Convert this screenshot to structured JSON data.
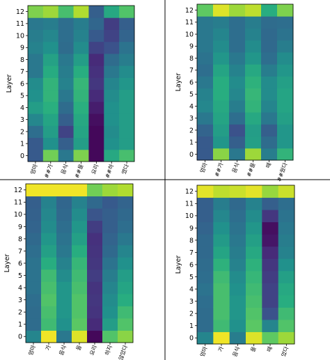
{
  "colormap": {
    "name": "viridis",
    "stops": [
      "#440154",
      "#472d7b",
      "#3b528b",
      "#2c728e",
      "#21918c",
      "#28ae80",
      "#5ec962",
      "#addc30",
      "#fde725"
    ]
  },
  "colors": {
    "grid_line": "#000000",
    "background": "#ffffff"
  },
  "chart_data": [
    {
      "type": "heatmap",
      "ylabel": "Layer",
      "y_categories": [
        "0",
        "1",
        "2",
        "3",
        "4",
        "5",
        "6",
        "7",
        "8",
        "9",
        "10",
        "11",
        "12"
      ],
      "x_categories": [
        "엄마",
        "##가",
        "음식",
        "##을",
        "요리",
        "##하",
        "였다"
      ],
      "values": [
        [
          0.28,
          0.28,
          0.36,
          0.46,
          0.55,
          0.5,
          0.48,
          0.4,
          0.4,
          0.44,
          0.42,
          0.4,
          0.8
        ],
        [
          0.78,
          0.5,
          0.55,
          0.58,
          0.63,
          0.65,
          0.65,
          0.61,
          0.57,
          0.5,
          0.46,
          0.42,
          0.85
        ],
        [
          0.4,
          0.3,
          0.2,
          0.3,
          0.35,
          0.4,
          0.44,
          0.42,
          0.4,
          0.35,
          0.36,
          0.36,
          0.7
        ],
        [
          0.8,
          0.55,
          0.58,
          0.6,
          0.63,
          0.65,
          0.66,
          0.62,
          0.55,
          0.48,
          0.44,
          0.42,
          0.88
        ],
        [
          0.02,
          0.02,
          0.02,
          0.04,
          0.08,
          0.12,
          0.16,
          0.14,
          0.12,
          0.2,
          0.28,
          0.33,
          0.3
        ],
        [
          0.6,
          0.5,
          0.48,
          0.5,
          0.5,
          0.48,
          0.45,
          0.4,
          0.35,
          0.25,
          0.2,
          0.18,
          0.6
        ],
        [
          0.7,
          0.55,
          0.55,
          0.55,
          0.55,
          0.55,
          0.52,
          0.48,
          0.42,
          0.38,
          0.32,
          0.3,
          0.72
        ]
      ]
    },
    {
      "type": "heatmap",
      "ylabel": "Layer",
      "y_categories": [
        "0",
        "1",
        "2",
        "3",
        "4",
        "5",
        "6",
        "7",
        "8",
        "9",
        "10",
        "11",
        "12"
      ],
      "x_categories": [
        "엄마",
        "##가",
        "음식",
        "##을",
        "떼",
        "##웠다"
      ],
      "values": [
        [
          0.28,
          0.28,
          0.32,
          0.4,
          0.46,
          0.44,
          0.4,
          0.36,
          0.38,
          0.4,
          0.4,
          0.4,
          0.75
        ],
        [
          0.82,
          0.52,
          0.55,
          0.58,
          0.6,
          0.62,
          0.62,
          0.58,
          0.52,
          0.48,
          0.45,
          0.42,
          0.95
        ],
        [
          0.4,
          0.3,
          0.25,
          0.36,
          0.42,
          0.46,
          0.48,
          0.44,
          0.4,
          0.36,
          0.36,
          0.36,
          0.85
        ],
        [
          0.85,
          0.56,
          0.55,
          0.6,
          0.65,
          0.66,
          0.64,
          0.6,
          0.52,
          0.48,
          0.44,
          0.42,
          0.9
        ],
        [
          0.42,
          0.35,
          0.3,
          0.4,
          0.45,
          0.48,
          0.48,
          0.42,
          0.36,
          0.34,
          0.34,
          0.35,
          0.62
        ],
        [
          0.65,
          0.52,
          0.52,
          0.56,
          0.58,
          0.58,
          0.56,
          0.52,
          0.48,
          0.42,
          0.38,
          0.36,
          0.8
        ]
      ]
    },
    {
      "type": "heatmap",
      "ylabel": "Layer",
      "y_categories": [
        "0",
        "1",
        "2",
        "3",
        "4",
        "5",
        "6",
        "7",
        "8",
        "9",
        "10",
        "11",
        "12"
      ],
      "x_categories": [
        "엄마",
        "가",
        "음식",
        "을",
        "요리",
        "하지",
        "않았다"
      ],
      "values": [
        [
          0.45,
          0.35,
          0.35,
          0.36,
          0.38,
          0.38,
          0.38,
          0.36,
          0.34,
          0.32,
          0.31,
          0.3,
          0.98
        ],
        [
          0.98,
          0.68,
          0.7,
          0.72,
          0.7,
          0.68,
          0.62,
          0.56,
          0.52,
          0.48,
          0.46,
          0.44,
          0.98
        ],
        [
          0.4,
          0.5,
          0.52,
          0.52,
          0.52,
          0.48,
          0.44,
          0.4,
          0.38,
          0.36,
          0.34,
          0.33,
          0.98
        ],
        [
          0.95,
          0.74,
          0.72,
          0.72,
          0.7,
          0.68,
          0.66,
          0.62,
          0.56,
          0.52,
          0.48,
          0.44,
          0.98
        ],
        [
          0.02,
          0.12,
          0.15,
          0.16,
          0.15,
          0.18,
          0.16,
          0.15,
          0.14,
          0.18,
          0.26,
          0.34,
          0.78
        ],
        [
          0.72,
          0.55,
          0.5,
          0.48,
          0.45,
          0.42,
          0.38,
          0.34,
          0.32,
          0.3,
          0.3,
          0.28,
          0.85
        ],
        [
          0.82,
          0.72,
          0.68,
          0.62,
          0.58,
          0.55,
          0.5,
          0.45,
          0.4,
          0.36,
          0.34,
          0.32,
          0.88
        ]
      ]
    },
    {
      "type": "heatmap",
      "ylabel": "Layer",
      "y_categories": [
        "0",
        "1",
        "2",
        "3",
        "4",
        "5",
        "6",
        "7",
        "8",
        "9",
        "10",
        "11",
        "12"
      ],
      "x_categories": [
        "엄마",
        "가",
        "음식",
        "을",
        "떼",
        "었다"
      ],
      "values": [
        [
          0.45,
          0.35,
          0.35,
          0.36,
          0.38,
          0.36,
          0.35,
          0.34,
          0.34,
          0.32,
          0.3,
          0.3,
          0.96
        ],
        [
          0.98,
          0.68,
          0.7,
          0.7,
          0.7,
          0.68,
          0.64,
          0.58,
          0.54,
          0.5,
          0.46,
          0.42,
          0.9
        ],
        [
          0.42,
          0.5,
          0.52,
          0.52,
          0.5,
          0.48,
          0.44,
          0.42,
          0.4,
          0.38,
          0.36,
          0.34,
          0.92
        ],
        [
          0.95,
          0.74,
          0.72,
          0.7,
          0.68,
          0.66,
          0.64,
          0.6,
          0.56,
          0.52,
          0.48,
          0.44,
          0.96
        ],
        [
          0.75,
          0.45,
          0.25,
          0.2,
          0.2,
          0.18,
          0.16,
          0.12,
          0.06,
          0.04,
          0.16,
          0.3,
          0.84
        ],
        [
          0.85,
          0.72,
          0.68,
          0.62,
          0.6,
          0.56,
          0.5,
          0.44,
          0.42,
          0.4,
          0.38,
          0.36,
          0.92
        ]
      ]
    }
  ]
}
